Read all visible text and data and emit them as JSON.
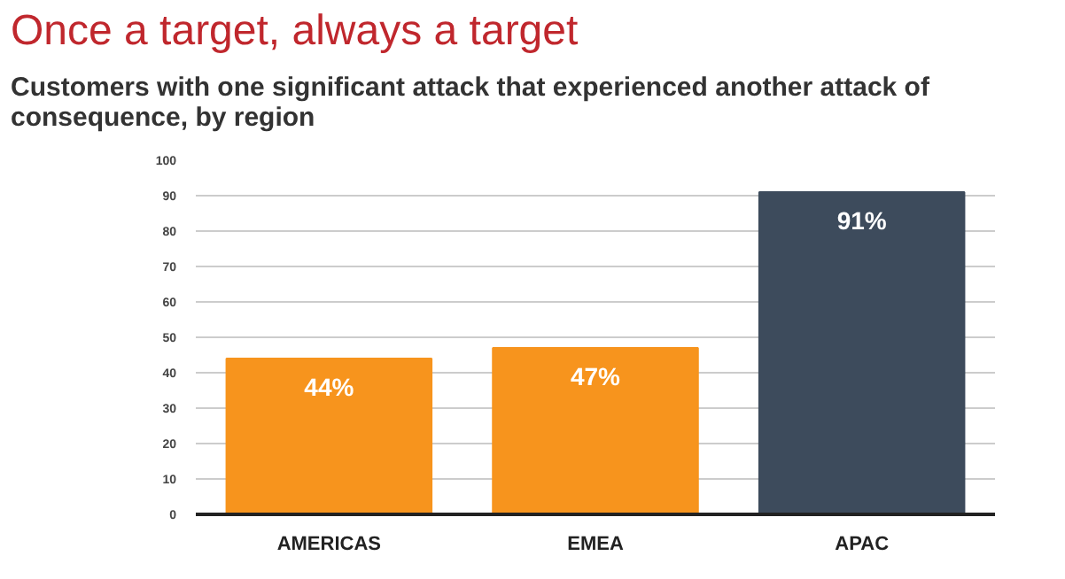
{
  "chart_data": {
    "type": "bar",
    "title": "Once a target, always a target",
    "subtitle": "Customers with one significant attack that experienced another attack of consequence, by region",
    "categories": [
      "AMERICAS",
      "EMEA",
      "APAC"
    ],
    "values": [
      44,
      47,
      91
    ],
    "colors": [
      "#f7941d",
      "#f7941d",
      "#3d4b5c"
    ],
    "value_labels": [
      "44%",
      "47%",
      "91%"
    ],
    "ylim": [
      0,
      100
    ],
    "yticks": [
      0,
      10,
      20,
      30,
      40,
      50,
      60,
      70,
      80,
      90,
      100
    ],
    "grid": "y"
  }
}
